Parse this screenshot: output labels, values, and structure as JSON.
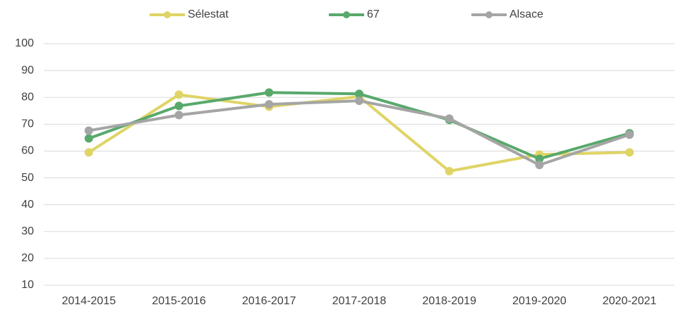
{
  "chart_data": {
    "type": "line",
    "categories": [
      "2014-2015",
      "2015-2016",
      "2016-2017",
      "2017-2018",
      "2018-2019",
      "2019-2020",
      "2020-2021"
    ],
    "series": [
      {
        "name": "Sélestat",
        "color": "#dfd466",
        "values": [
          59.5,
          81,
          76.5,
          80.3,
          52.5,
          58.7,
          59.5
        ]
      },
      {
        "name": "67",
        "color": "#58a96b",
        "values": [
          64.7,
          76.8,
          81.8,
          81.3,
          71.6,
          57.1,
          66.6
        ]
      },
      {
        "name": "Alsace",
        "color": "#a5a5a5",
        "values": [
          67.6,
          73.4,
          77.4,
          78.7,
          72.1,
          54.8,
          66.1
        ]
      }
    ],
    "ylim": [
      10,
      100
    ],
    "yticks": [
      10,
      20,
      30,
      40,
      50,
      60,
      70,
      80,
      90,
      100
    ],
    "grid": true
  }
}
